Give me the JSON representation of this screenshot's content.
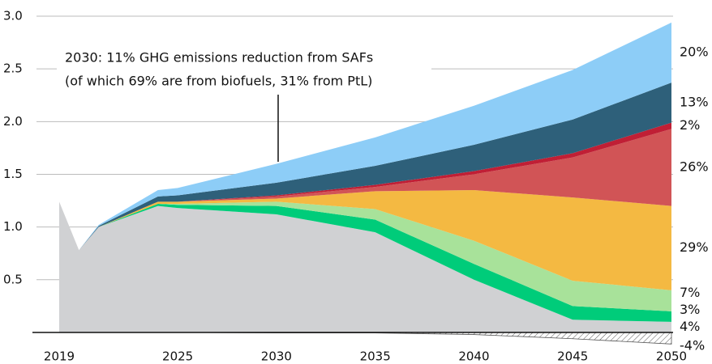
{
  "chart_data": {
    "type": "stacked_area",
    "annotation": [
      "2030: 11% GHG emissions reduction from SAFs",
      "(of which 69% are from biofuels, 31% from PtL)"
    ],
    "x": [
      2019,
      2020,
      2021,
      2024,
      2025,
      2030,
      2035,
      2040,
      2045,
      2050
    ],
    "xlim": [
      2019,
      2050
    ],
    "xticks": [
      2019,
      2025,
      2030,
      2035,
      2040,
      2045,
      2050
    ],
    "ylim": [
      -0.2,
      3.0
    ],
    "yticks": [
      0.5,
      {
        "value": 1.0,
        "label": "1.0"
      },
      1.5,
      {
        "value": 2.0,
        "label": "2.0"
      },
      2.5,
      {
        "value": 3.0,
        "label": "3.0"
      }
    ],
    "grid": true,
    "series": [
      {
        "label": "4%",
        "color": "#d0d1d3",
        "values": [
          1.24,
          0.78,
          1.0,
          1.2,
          1.18,
          1.12,
          0.95,
          0.5,
          0.12,
          0.1
        ]
      },
      {
        "label": "3%",
        "color": "#00cc7a",
        "values": [
          0,
          0,
          0,
          0.02,
          0.03,
          0.08,
          0.12,
          0.15,
          0.13,
          0.1
        ]
      },
      {
        "label": "7%",
        "color": "#a8e29a",
        "values": [
          0,
          0,
          0,
          0,
          0.01,
          0.04,
          0.1,
          0.22,
          0.24,
          0.2
        ]
      },
      {
        "label": "29%",
        "color": "#f4b942",
        "values": [
          0,
          0,
          0,
          0.02,
          0.02,
          0.03,
          0.17,
          0.48,
          0.79,
          0.8
        ]
      },
      {
        "label": "26%",
        "color": "#d15456",
        "values": [
          0,
          0,
          0,
          0,
          0,
          0.02,
          0.04,
          0.15,
          0.38,
          0.73
        ]
      },
      {
        "label": "2%",
        "color": "#c01f35",
        "values": [
          0,
          0,
          0,
          0,
          0,
          0.01,
          0.02,
          0.03,
          0.04,
          0.06
        ]
      },
      {
        "label": "13%",
        "color": "#2e607a",
        "values": [
          0,
          0,
          0.01,
          0.05,
          0.06,
          0.12,
          0.18,
          0.25,
          0.32,
          0.38
        ]
      },
      {
        "label": "20%",
        "color": "#8dcdf7",
        "values": [
          0,
          0,
          0.01,
          0.06,
          0.07,
          0.18,
          0.27,
          0.37,
          0.47,
          0.57
        ]
      }
    ],
    "negative": {
      "label": "-4%",
      "color": "#555555",
      "values": [
        0,
        0,
        0,
        0,
        0,
        -0.005,
        -0.005,
        -0.02,
        -0.06,
        -0.11
      ]
    }
  }
}
